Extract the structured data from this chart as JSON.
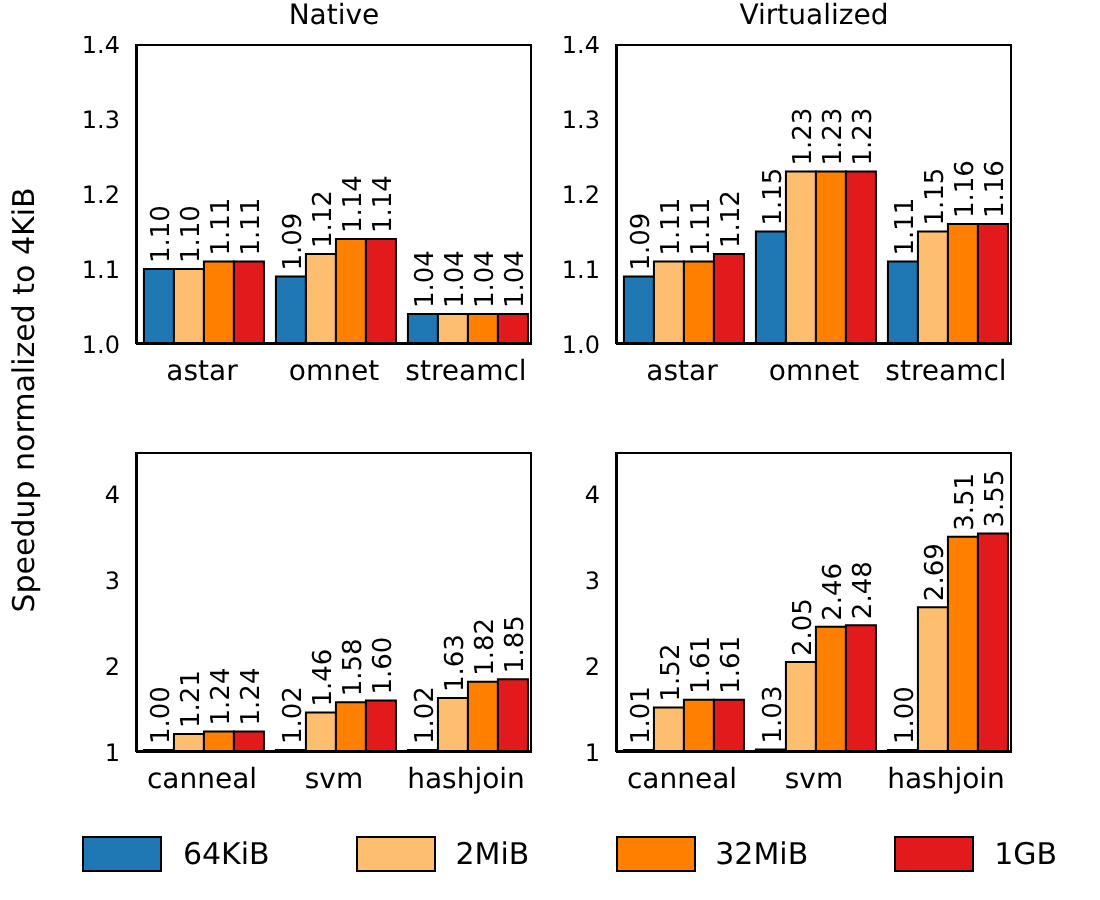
{
  "chart_data": [
    {
      "type": "bar",
      "title": "Native",
      "ylabel": "Speedup normalized to 4KiB",
      "legend": "bottom",
      "categories": [
        "astar",
        "omnet",
        "streamcl"
      ],
      "ylim": [
        1.0,
        1.4
      ],
      "yticks": [
        {
          "value": 1.0,
          "label": "1.0"
        },
        {
          "value": 1.1,
          "label": "1.1"
        },
        {
          "value": 1.2,
          "label": "1.2"
        },
        {
          "value": 1.3,
          "label": "1.3"
        },
        {
          "value": 1.4,
          "label": "1.4"
        }
      ],
      "series": [
        {
          "name": "64KiB",
          "color": "#1f77b4",
          "values": [
            1.1,
            1.09,
            1.04
          ],
          "value_labels": [
            "1.10",
            "1.09",
            "1.04"
          ]
        },
        {
          "name": "2MiB",
          "color": "#fdbf6f",
          "values": [
            1.1,
            1.12,
            1.04
          ],
          "value_labels": [
            "1.10",
            "1.12",
            "1.04"
          ]
        },
        {
          "name": "32MiB",
          "color": "#ff7f00",
          "values": [
            1.11,
            1.14,
            1.04
          ],
          "value_labels": [
            "1.11",
            "1.14",
            "1.04"
          ]
        },
        {
          "name": "1GB",
          "color": "#e31a1c",
          "values": [
            1.11,
            1.14,
            1.04
          ],
          "value_labels": [
            "1.11",
            "1.14",
            "1.04"
          ]
        }
      ]
    },
    {
      "type": "bar",
      "title": "Virtualized",
      "categories": [
        "astar",
        "omnet",
        "streamcl"
      ],
      "ylim": [
        1.0,
        1.4
      ],
      "yticks": [
        {
          "value": 1.0,
          "label": "1.0"
        },
        {
          "value": 1.1,
          "label": "1.1"
        },
        {
          "value": 1.2,
          "label": "1.2"
        },
        {
          "value": 1.3,
          "label": "1.3"
        },
        {
          "value": 1.4,
          "label": "1.4"
        }
      ],
      "series": [
        {
          "color": "#1f77b4",
          "values": [
            1.09,
            1.15,
            1.11
          ],
          "value_labels": [
            "1.09",
            "1.15",
            "1.11"
          ]
        },
        {
          "color": "#fdbf6f",
          "values": [
            1.11,
            1.23,
            1.15
          ],
          "value_labels": [
            "1.11",
            "1.23",
            "1.15"
          ]
        },
        {
          "color": "#ff7f00",
          "values": [
            1.11,
            1.23,
            1.16
          ],
          "value_labels": [
            "1.11",
            "1.23",
            "1.16"
          ]
        },
        {
          "color": "#e31a1c",
          "values": [
            1.12,
            1.23,
            1.16
          ],
          "value_labels": [
            "1.12",
            "1.23",
            "1.16"
          ]
        }
      ]
    },
    {
      "type": "bar",
      "categories": [
        "canneal",
        "svm",
        "hashjoin"
      ],
      "ylim": [
        1,
        4.5
      ],
      "yticks": [
        1,
        2,
        3,
        4
      ],
      "series": [
        {
          "color": "#1f77b4",
          "values": [
            1.0,
            1.02,
            1.02
          ],
          "value_labels": [
            "1.00",
            "1.02",
            "1.02"
          ]
        },
        {
          "color": "#fdbf6f",
          "values": [
            1.21,
            1.46,
            1.63
          ],
          "value_labels": [
            "1.21",
            "1.46",
            "1.63"
          ]
        },
        {
          "color": "#ff7f00",
          "values": [
            1.24,
            1.58,
            1.82
          ],
          "value_labels": [
            "1.24",
            "1.58",
            "1.82"
          ]
        },
        {
          "color": "#e31a1c",
          "values": [
            1.24,
            1.6,
            1.85
          ],
          "value_labels": [
            "1.24",
            "1.60",
            "1.85"
          ]
        }
      ]
    },
    {
      "type": "bar",
      "categories": [
        "canneal",
        "svm",
        "hashjoin"
      ],
      "ylim": [
        1,
        4.5
      ],
      "yticks": [
        1,
        2,
        3,
        4
      ],
      "series": [
        {
          "color": "#1f77b4",
          "values": [
            1.01,
            1.03,
            1.0
          ],
          "value_labels": [
            "1.01",
            "1.03",
            "1.00"
          ]
        },
        {
          "color": "#fdbf6f",
          "values": [
            1.52,
            2.05,
            2.69
          ],
          "value_labels": [
            "1.52",
            "2.05",
            "2.69"
          ]
        },
        {
          "color": "#ff7f00",
          "values": [
            1.61,
            2.46,
            3.51
          ],
          "value_labels": [
            "1.61",
            "2.46",
            "3.51"
          ]
        },
        {
          "color": "#e31a1c",
          "values": [
            1.61,
            2.48,
            3.55
          ],
          "value_labels": [
            "1.61",
            "2.48",
            "3.55"
          ]
        }
      ]
    }
  ]
}
